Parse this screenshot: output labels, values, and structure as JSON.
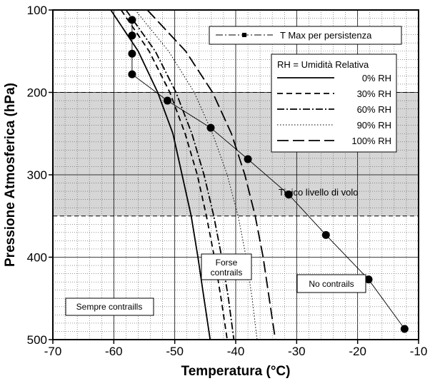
{
  "chart_data": {
    "type": "line",
    "xlabel": "Temperatura (°C)",
    "ylabel": "Pressione Atmosferica (hPa)",
    "xlim": [
      -70,
      -10
    ],
    "ylim": [
      100,
      500
    ],
    "y_inverted": true,
    "x_ticks": [
      "-70",
      "-60",
      "-50",
      "-40",
      "-30",
      "-20",
      "-10"
    ],
    "y_ticks": [
      "100",
      "200",
      "300",
      "400",
      "500"
    ],
    "grid": true,
    "band": {
      "from": 200,
      "to": 350,
      "label": "Tipico livello di volo"
    },
    "legend_title": "RH = Umidità Relativa",
    "legend_tmax": "T Max per persistenza",
    "series": [
      {
        "name": "0% RH",
        "dash": "solid",
        "points": [
          [
            -60.5,
            100
          ],
          [
            -56,
            150
          ],
          [
            -52.8,
            200
          ],
          [
            -50.3,
            250
          ],
          [
            -48.8,
            300
          ],
          [
            -47.3,
            350
          ],
          [
            -46.2,
            400
          ],
          [
            -45.2,
            450
          ],
          [
            -44.2,
            500
          ]
        ]
      },
      {
        "name": "30% RH",
        "dash": "dash",
        "points": [
          [
            -58.8,
            100
          ],
          [
            -54.2,
            150
          ],
          [
            -50.8,
            200
          ],
          [
            -48.3,
            250
          ],
          [
            -46.3,
            300
          ],
          [
            -44.8,
            350
          ],
          [
            -43.5,
            400
          ],
          [
            -42.4,
            450
          ],
          [
            -41.4,
            500
          ]
        ]
      },
      {
        "name": "60% RH",
        "dash": "dashdot",
        "points": [
          [
            -58,
            100
          ],
          [
            -53.2,
            150
          ],
          [
            -49.8,
            200
          ],
          [
            -47.2,
            250
          ],
          [
            -45.2,
            300
          ],
          [
            -43.6,
            350
          ],
          [
            -42.3,
            400
          ],
          [
            -41.2,
            450
          ],
          [
            -40.3,
            500
          ]
        ]
      },
      {
        "name": "90% RH",
        "dash": "dot",
        "points": [
          [
            -56.5,
            100
          ],
          [
            -51,
            150
          ],
          [
            -46.8,
            200
          ],
          [
            -43.8,
            250
          ],
          [
            -41.4,
            300
          ],
          [
            -39.6,
            350
          ],
          [
            -38.3,
            400
          ],
          [
            -37.3,
            450
          ],
          [
            -36.5,
            500
          ]
        ]
      },
      {
        "name": "100% RH",
        "dash": "longdash",
        "points": [
          [
            -54.5,
            100
          ],
          [
            -48.2,
            150
          ],
          [
            -43.8,
            200
          ],
          [
            -40.7,
            250
          ],
          [
            -38.5,
            300
          ],
          [
            -36.8,
            350
          ],
          [
            -35.5,
            400
          ],
          [
            -34.5,
            450
          ],
          [
            -33.5,
            500
          ]
        ]
      }
    ],
    "tmax_points": [
      [
        -57,
        112
      ],
      [
        -57,
        131
      ],
      [
        -57,
        153
      ],
      [
        -57,
        178
      ],
      [
        -51.2,
        210
      ],
      [
        -44.1,
        243
      ],
      [
        -38,
        281
      ],
      [
        -31.3,
        324
      ],
      [
        -25.2,
        373
      ],
      [
        -18.2,
        427
      ],
      [
        -12.3,
        487
      ]
    ],
    "annotations": [
      {
        "text": "Sempre contraills",
        "x": -66.3,
        "y": 474
      },
      {
        "text": "No contrails",
        "x": -22.2,
        "y": 433
      }
    ],
    "forse": [
      "Forse",
      "contrails"
    ]
  }
}
